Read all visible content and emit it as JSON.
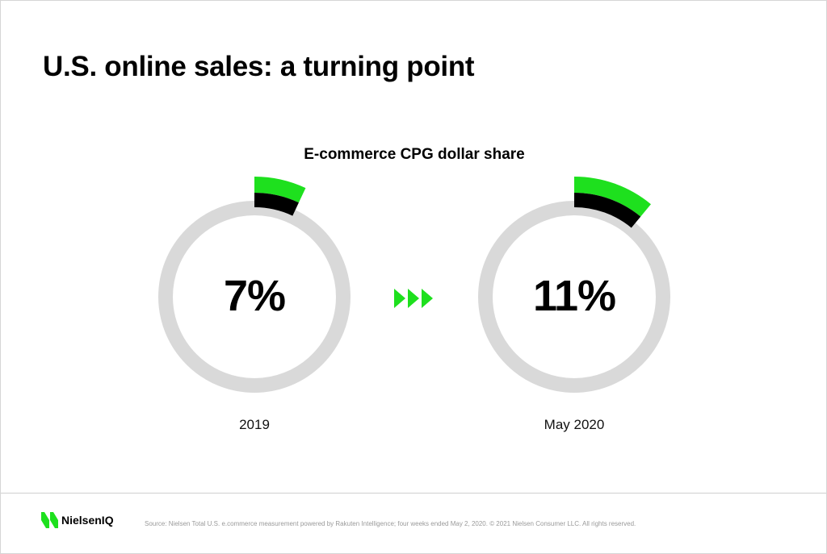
{
  "title": "U.S. online sales: a turning point",
  "footer": {
    "logo_text": "NielsenIQ",
    "source": "Source: Nielsen Total U.S. e.commerce measurement powered by Rakuten Intelligence; four weeks ended May 2, 2020. © 2021 Nielsen Consumer LLC. All rights reserved."
  },
  "colors": {
    "accent": "#1ee01e",
    "black": "#000000",
    "track": "#d9d9d9"
  },
  "chart_data": {
    "type": "donut",
    "title": "E-commerce CPG dollar share",
    "unit": "%",
    "series": [
      {
        "label": "2019",
        "value": 7,
        "display": "7%"
      },
      {
        "label": "May 2020",
        "value": 11,
        "display": "11%"
      }
    ],
    "arrow_icon": "triple-chevron-right-icon"
  }
}
